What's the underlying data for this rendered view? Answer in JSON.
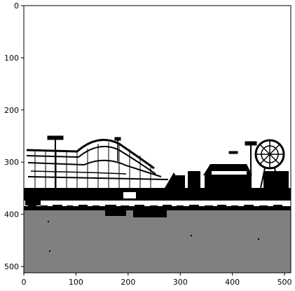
{
  "chart_data": {
    "type": "image",
    "title": "",
    "xlabel": "",
    "ylabel": "",
    "xlim": [
      0,
      512
    ],
    "ylim": [
      512,
      0
    ],
    "x_ticks": [
      0,
      100,
      200,
      300,
      400,
      500
    ],
    "y_ticks": [
      0,
      100,
      200,
      300,
      400,
      500
    ],
    "image_description": "Thresholded black/white/gray image of an amusement-park skyline: roller coaster, ferris wheel, light poles above a gray ground area",
    "colors": {
      "sky": "#ffffff",
      "structures": "#000000",
      "ground": "#808080",
      "frame": "#000000"
    }
  }
}
